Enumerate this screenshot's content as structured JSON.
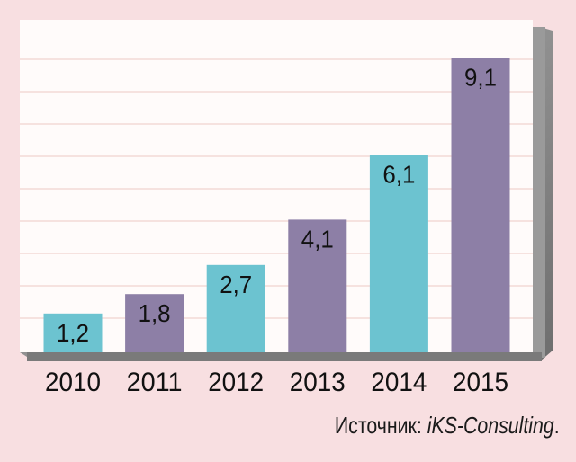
{
  "chart_data": {
    "type": "bar",
    "categories": [
      "2010",
      "2011",
      "2012",
      "2013",
      "2014",
      "2015"
    ],
    "values": [
      1.2,
      1.8,
      2.7,
      4.1,
      6.1,
      9.1
    ],
    "value_labels": [
      "1,2",
      "1,8",
      "2,7",
      "4,1",
      "6,1",
      "9,1"
    ],
    "ylim": [
      0,
      10
    ],
    "grid": true,
    "title": "",
    "xlabel": "",
    "ylabel": "",
    "bar_colors": [
      "#6cc3d0",
      "#8d7fa6",
      "#6cc3d0",
      "#8d7fa6",
      "#6cc3d0",
      "#8d7fa6"
    ]
  },
  "source": {
    "label": "Источник: ",
    "name": "iKS-Consulting",
    "end": "."
  },
  "colors": {
    "page_background": "#f8dfe1",
    "plot_background": "#fffbfa",
    "grid": "#f4d9d6",
    "frame_shadow": "#8e8e8e"
  }
}
